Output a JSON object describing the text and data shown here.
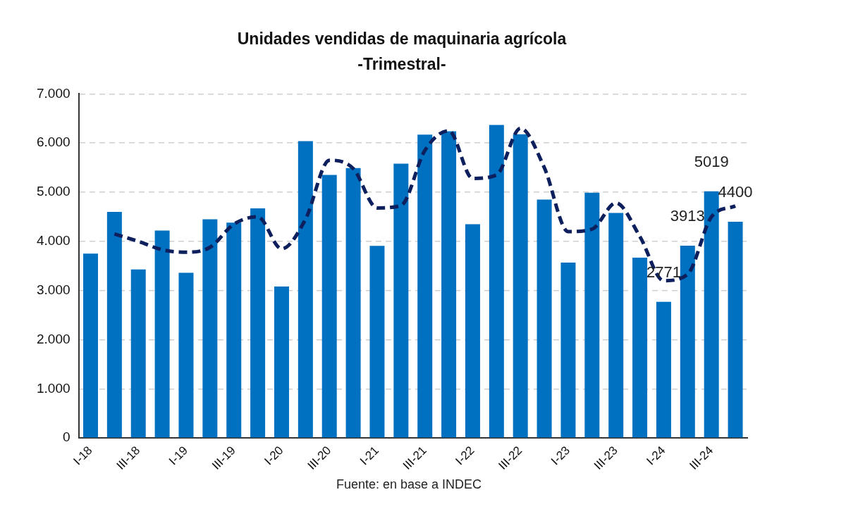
{
  "chart_data": {
    "type": "bar",
    "title": "Unidades vendidas de maquinaria agrícola",
    "subtitle": "-Trimestral-",
    "categories": [
      "I-18",
      null,
      "III-18",
      null,
      "I-19",
      null,
      "III-19",
      null,
      "I-20",
      null,
      "III-20",
      null,
      "I-21",
      null,
      "III-21",
      null,
      "I-22",
      null,
      "III-22",
      null,
      "I-23",
      null,
      "III-23",
      null,
      "I-24",
      null,
      "III-24",
      null
    ],
    "series": [
      {
        "color": "#0070c0",
        "values": [
          3750,
          4600,
          3430,
          4220,
          3360,
          4450,
          4380,
          4670,
          3080,
          6040,
          5350,
          5490,
          3910,
          5580,
          6170,
          6240,
          4350,
          6370,
          6180,
          4850,
          3570,
          4990,
          4580,
          3670,
          2771,
          3913,
          5019,
          4400
        ],
        "value_labels": [
          null,
          null,
          null,
          null,
          null,
          null,
          null,
          null,
          null,
          null,
          null,
          null,
          null,
          null,
          null,
          null,
          null,
          null,
          null,
          null,
          null,
          null,
          null,
          null,
          "2771",
          "3913",
          "5019",
          "4400"
        ]
      },
      {
        "type": "line",
        "color": "#0d1f5c",
        "line_style": "dashed",
        "marker": "none",
        "values": [
          null,
          4150,
          4000,
          3830,
          3780,
          3880,
          4350,
          4500,
          3850,
          4450,
          5650,
          5480,
          4680,
          4730,
          5850,
          6250,
          5280,
          5350,
          6300,
          5500,
          4200,
          4250,
          4780,
          4100,
          3200,
          3330,
          4500,
          4720
        ]
      }
    ],
    "ylim": [
      0,
      7000
    ],
    "yticks": [
      {
        "value": 0,
        "label": "0"
      },
      {
        "value": 1000,
        "label": "1.000"
      },
      {
        "value": 2000,
        "label": "2.000"
      },
      {
        "value": 3000,
        "label": "3.000"
      },
      {
        "value": 4000,
        "label": "4.000"
      },
      {
        "value": 5000,
        "label": "5.000"
      },
      {
        "value": 6000,
        "label": "6.000"
      },
      {
        "value": 7000,
        "label": "7.000"
      }
    ],
    "grid": "y",
    "legend": false,
    "annotations": [
      "Fuente: en base a INDEC"
    ]
  }
}
